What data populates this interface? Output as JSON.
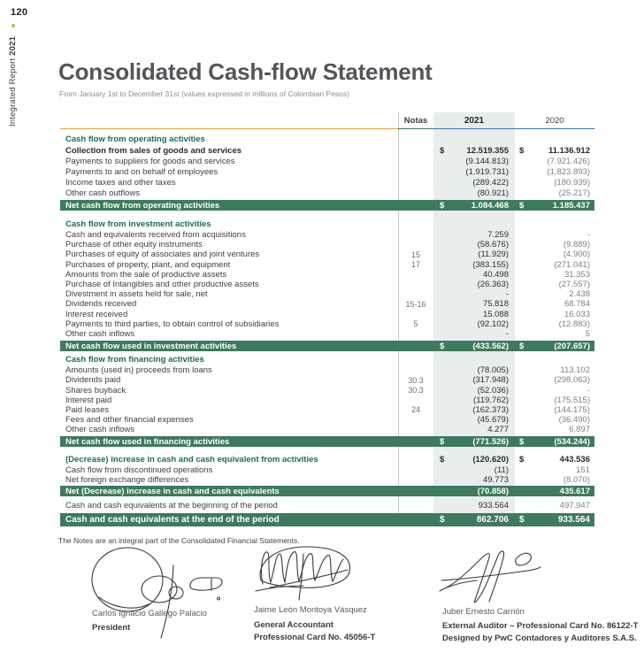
{
  "sidebar": {
    "page_number": "120",
    "report_title": "Integrated Report ",
    "report_year": "2021"
  },
  "header": {
    "title": "Consolidated Cash-flow Statement",
    "subtitle": "From January 1st to December 31st (values expressed in millions of Colombian Pesos)"
  },
  "currency": "$",
  "table": {
    "columns": {
      "notes": "Notas",
      "y2021": "2021",
      "y2020": "2020"
    },
    "sections": [
      {
        "title": "Cash flow from operating activities",
        "rows": [
          {
            "label": "Collection from sales of goods and services",
            "nota": "",
            "v2021": "12.519.355",
            "v2020": "11.136.912",
            "dollar": true,
            "bold": true
          },
          {
            "label": "Payments to suppliers for goods and services",
            "nota": "",
            "v2021": "(9.144.813)",
            "v2020": "(7.921.426)"
          },
          {
            "label": "Payments to and on behalf of employees",
            "nota": "",
            "v2021": "(1.919.731)",
            "v2020": "(1.823.893)"
          },
          {
            "label": "Income taxes and other taxes",
            "nota": "",
            "v2021": "(289.422)",
            "v2020": "(180.939)"
          },
          {
            "label": "Other cash outflows",
            "nota": "",
            "v2021": "(80.921)",
            "v2020": "(25.217)"
          }
        ],
        "total": {
          "label": "Net cash flow from operating activities",
          "v2021": "1.084.468",
          "v2020": "1.185.437",
          "dollar": true
        }
      },
      {
        "title": "Cash flow from investment activities",
        "rows": [
          {
            "label": "Cash and equivalents received from acquisitions",
            "nota": "",
            "v2021": "7.259",
            "v2020": "-"
          },
          {
            "label": "Purchase of other equity instruments",
            "nota": "",
            "v2021": "(58.676)",
            "v2020": "(9.889)"
          },
          {
            "label": "Purchases of equity of associates and joint ventures",
            "nota": "15",
            "v2021": "(11.929)",
            "v2020": "(4.900)"
          },
          {
            "label": "Purchases of property, plant, and equipment",
            "nota": "17",
            "v2021": "(383.155)",
            "v2020": "(271.041)"
          },
          {
            "label": "Amounts from the sale of productive assets",
            "nota": "",
            "v2021": "40.498",
            "v2020": "31.353"
          },
          {
            "label": "Purchase of Intangibles and other productive assets",
            "nota": "",
            "v2021": "(26.363)",
            "v2020": "(27.557)"
          },
          {
            "label": "Divestment in assets held for sale, net",
            "nota": "",
            "v2021": "-",
            "v2020": "2.438"
          },
          {
            "label": "Dividends received",
            "nota": "15-16",
            "v2021": "75.818",
            "v2020": "68.784"
          },
          {
            "label": "Interest received",
            "nota": "",
            "v2021": "15.088",
            "v2020": "16.033"
          },
          {
            "label": "Payments to third parties, to obtain control of subsidiaries",
            "nota": "5",
            "v2021": "(92.102)",
            "v2020": "(12.883)"
          },
          {
            "label": "Other cash inflows",
            "nota": "",
            "v2021": "-",
            "v2020": "5"
          }
        ],
        "total": {
          "label": "Net cash flow used in investment activities",
          "v2021": "(433.562)",
          "v2020": "(207.657)",
          "dollar": true
        }
      },
      {
        "title": "Cash flow from financing activities",
        "rows": [
          {
            "label": "Amounts (used in) proceeds from loans",
            "nota": "",
            "v2021": "(78.005)",
            "v2020": "113.102"
          },
          {
            "label": "Dividends paid",
            "nota": "30.3",
            "v2021": "(317.948)",
            "v2020": "(298.063)"
          },
          {
            "label": "Shares buyback",
            "nota": "30.3",
            "v2021": "(52.036)",
            "v2020": "-"
          },
          {
            "label": "Interest paid",
            "nota": "",
            "v2021": "(119.762)",
            "v2020": "(175.515)"
          },
          {
            "label": "Paid leases",
            "nota": "24",
            "v2021": "(162.373)",
            "v2020": "(144.175)"
          },
          {
            "label": "Fees and other financial expenses",
            "nota": "",
            "v2021": "(45.679)",
            "v2020": "(36.490)"
          },
          {
            "label": "Other cash inflows",
            "nota": "",
            "v2021": "4.277",
            "v2020": "6.897"
          }
        ],
        "total": {
          "label": "Net cash flow used in financing activities",
          "v2021": "(771.526)",
          "v2020": "(534.244)",
          "dollar": true
        }
      }
    ],
    "summary": {
      "lead_row": {
        "label": "(Decrease) increase in cash and cash equivalent from activities",
        "v2021": "(120.620)",
        "v2020": "443.536",
        "dollar": true
      },
      "rows": [
        {
          "label": "Cash flow from discontinued operations",
          "v2021": "(11)",
          "v2020": "151"
        },
        {
          "label": "Net foreign exchange differences",
          "v2021": "49.773",
          "v2020": "(8.070)"
        }
      ],
      "net_bar": {
        "label": "Net (Decrease) increase in cash and cash equivalents",
        "v2021": "(70.858)",
        "v2020": "435.617",
        "dollar": false
      },
      "beginning_row": {
        "label": "Cash and cash equivalents at the beginning of the period",
        "v2021": "933.564",
        "v2020": "497.947"
      },
      "end_bar": {
        "label": "Cash and cash equivalents at the end of the period",
        "v2021": "862.706",
        "v2020": "933.564",
        "dollar": true
      }
    }
  },
  "footnote": "The Notes are an integral part of the Consolidated Financial Statements.",
  "signatories": [
    {
      "name": "Carlos Ignacio Gallego Palacio",
      "title1": "President",
      "title2": ""
    },
    {
      "name": "Jaime León Montoya Vásquez",
      "title1": "General Accountant",
      "title2": "Professional Card No. 45056-T"
    },
    {
      "name": "Juber Ernesto Carrión",
      "title1": "External Auditor – Professional Card No. 86122-T",
      "title2": "Designed by PwC Contadores y Auditores S.A.S."
    }
  ],
  "colors": {
    "bar_green": "#3e7a5d",
    "section_green": "#1e6b54",
    "rule_orange": "#e7a23c",
    "rule_blue": "#2f79be",
    "shade_2021": "#e9edec",
    "title_gray": "#54565a"
  }
}
